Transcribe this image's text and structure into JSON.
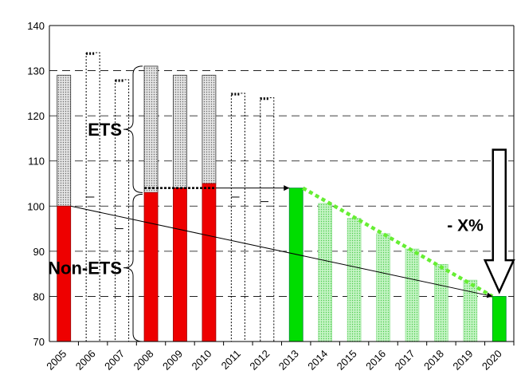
{
  "chart_data": {
    "type": "bar",
    "title": "",
    "xlabel": "",
    "ylabel": "",
    "ylim": [
      70,
      140
    ],
    "yticks": [
      70,
      80,
      90,
      100,
      110,
      120,
      130,
      140
    ],
    "grid": "horizontal dashed",
    "categories": [
      "2005",
      "2006",
      "2007",
      "2008",
      "2009",
      "2010",
      "2011",
      "2012",
      "2013",
      "2014",
      "2015",
      "2016",
      "2017",
      "2018",
      "2019",
      "2020"
    ],
    "series": [
      {
        "name": "Non-ETS",
        "values": [
          100,
          102,
          95,
          103,
          104,
          105,
          102,
          101,
          104,
          100.6,
          97.3,
          93.9,
          90.5,
          87.1,
          83.6,
          80
        ]
      },
      {
        "name": "ETS",
        "values": [
          29,
          32,
          33,
          28,
          25,
          24,
          23,
          23,
          null,
          null,
          null,
          null,
          null,
          null,
          null,
          null
        ]
      }
    ],
    "bar_styles": [
      "red-dotted",
      "outline",
      "outline",
      "red-dotted",
      "red-dotted",
      "red-dotted",
      "outline",
      "outline",
      "green",
      "lightgreen",
      "lightgreen",
      "lightgreen",
      "lightgreen",
      "lightgreen",
      "lightgreen",
      "green"
    ],
    "annotations": {
      "ets_label": "ETS",
      "non_ets_label": "Non-ETS",
      "reduction_label": "- X%",
      "arrow_2008_to_2013": {
        "from": [
          "2008",
          104
        ],
        "to": [
          "2013",
          104
        ]
      },
      "arrow_2005_to_2020": {
        "from": [
          "2005",
          100
        ],
        "to": [
          "2020",
          80
        ]
      },
      "trend_2013_to_2020": {
        "from": [
          "2013",
          104
        ],
        "to": [
          "2020",
          80
        ]
      }
    },
    "colors": {
      "red": "#ee0000",
      "green": "#00dd00",
      "lightgreen": "#bbf2bb",
      "ets_fill": "#d9d9d9",
      "trend": "#66ee33"
    }
  }
}
